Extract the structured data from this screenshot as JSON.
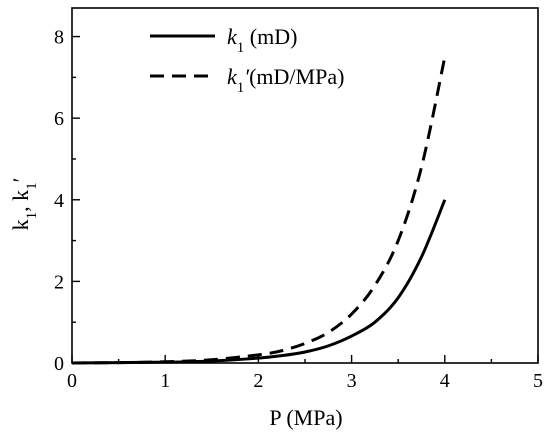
{
  "chart_data": {
    "type": "line",
    "xlabel": "P (MPa)",
    "ylabel": {
      "k_letter": "k",
      "sub": "1",
      "comma": ", ",
      "prime": "′"
    },
    "xlim": [
      0,
      5
    ],
    "ylim": [
      0,
      8.7
    ],
    "x_ticks": [
      0,
      1,
      2,
      3,
      4,
      5
    ],
    "y_ticks": [
      0,
      2,
      4,
      6,
      8
    ],
    "grid": false,
    "legend_placement": "top-left",
    "series": [
      {
        "legend": {
          "sym": "k",
          "sub": "1",
          "prime": "",
          "unit": " (mD)"
        },
        "style": "solid",
        "color": "#000000",
        "x": [
          0,
          0.5,
          1.0,
          1.5,
          2.0,
          2.25,
          2.5,
          2.75,
          3.0,
          3.25,
          3.5,
          3.75,
          4.0
        ],
        "y": [
          0.0,
          0.01,
          0.02,
          0.05,
          0.12,
          0.18,
          0.27,
          0.42,
          0.66,
          1.0,
          1.6,
          2.6,
          4.0
        ]
      },
      {
        "legend": {
          "sym": "k",
          "sub": "1",
          "prime": "′",
          "unit": "(mD/MPa)"
        },
        "style": "dashed",
        "color": "#000000",
        "x": [
          0,
          0.5,
          1.0,
          1.5,
          2.0,
          2.25,
          2.5,
          2.75,
          3.0,
          3.25,
          3.5,
          3.75,
          4.0
        ],
        "y": [
          0.0,
          0.01,
          0.03,
          0.08,
          0.2,
          0.3,
          0.48,
          0.75,
          1.2,
          1.9,
          3.0,
          4.8,
          7.5
        ]
      }
    ]
  }
}
